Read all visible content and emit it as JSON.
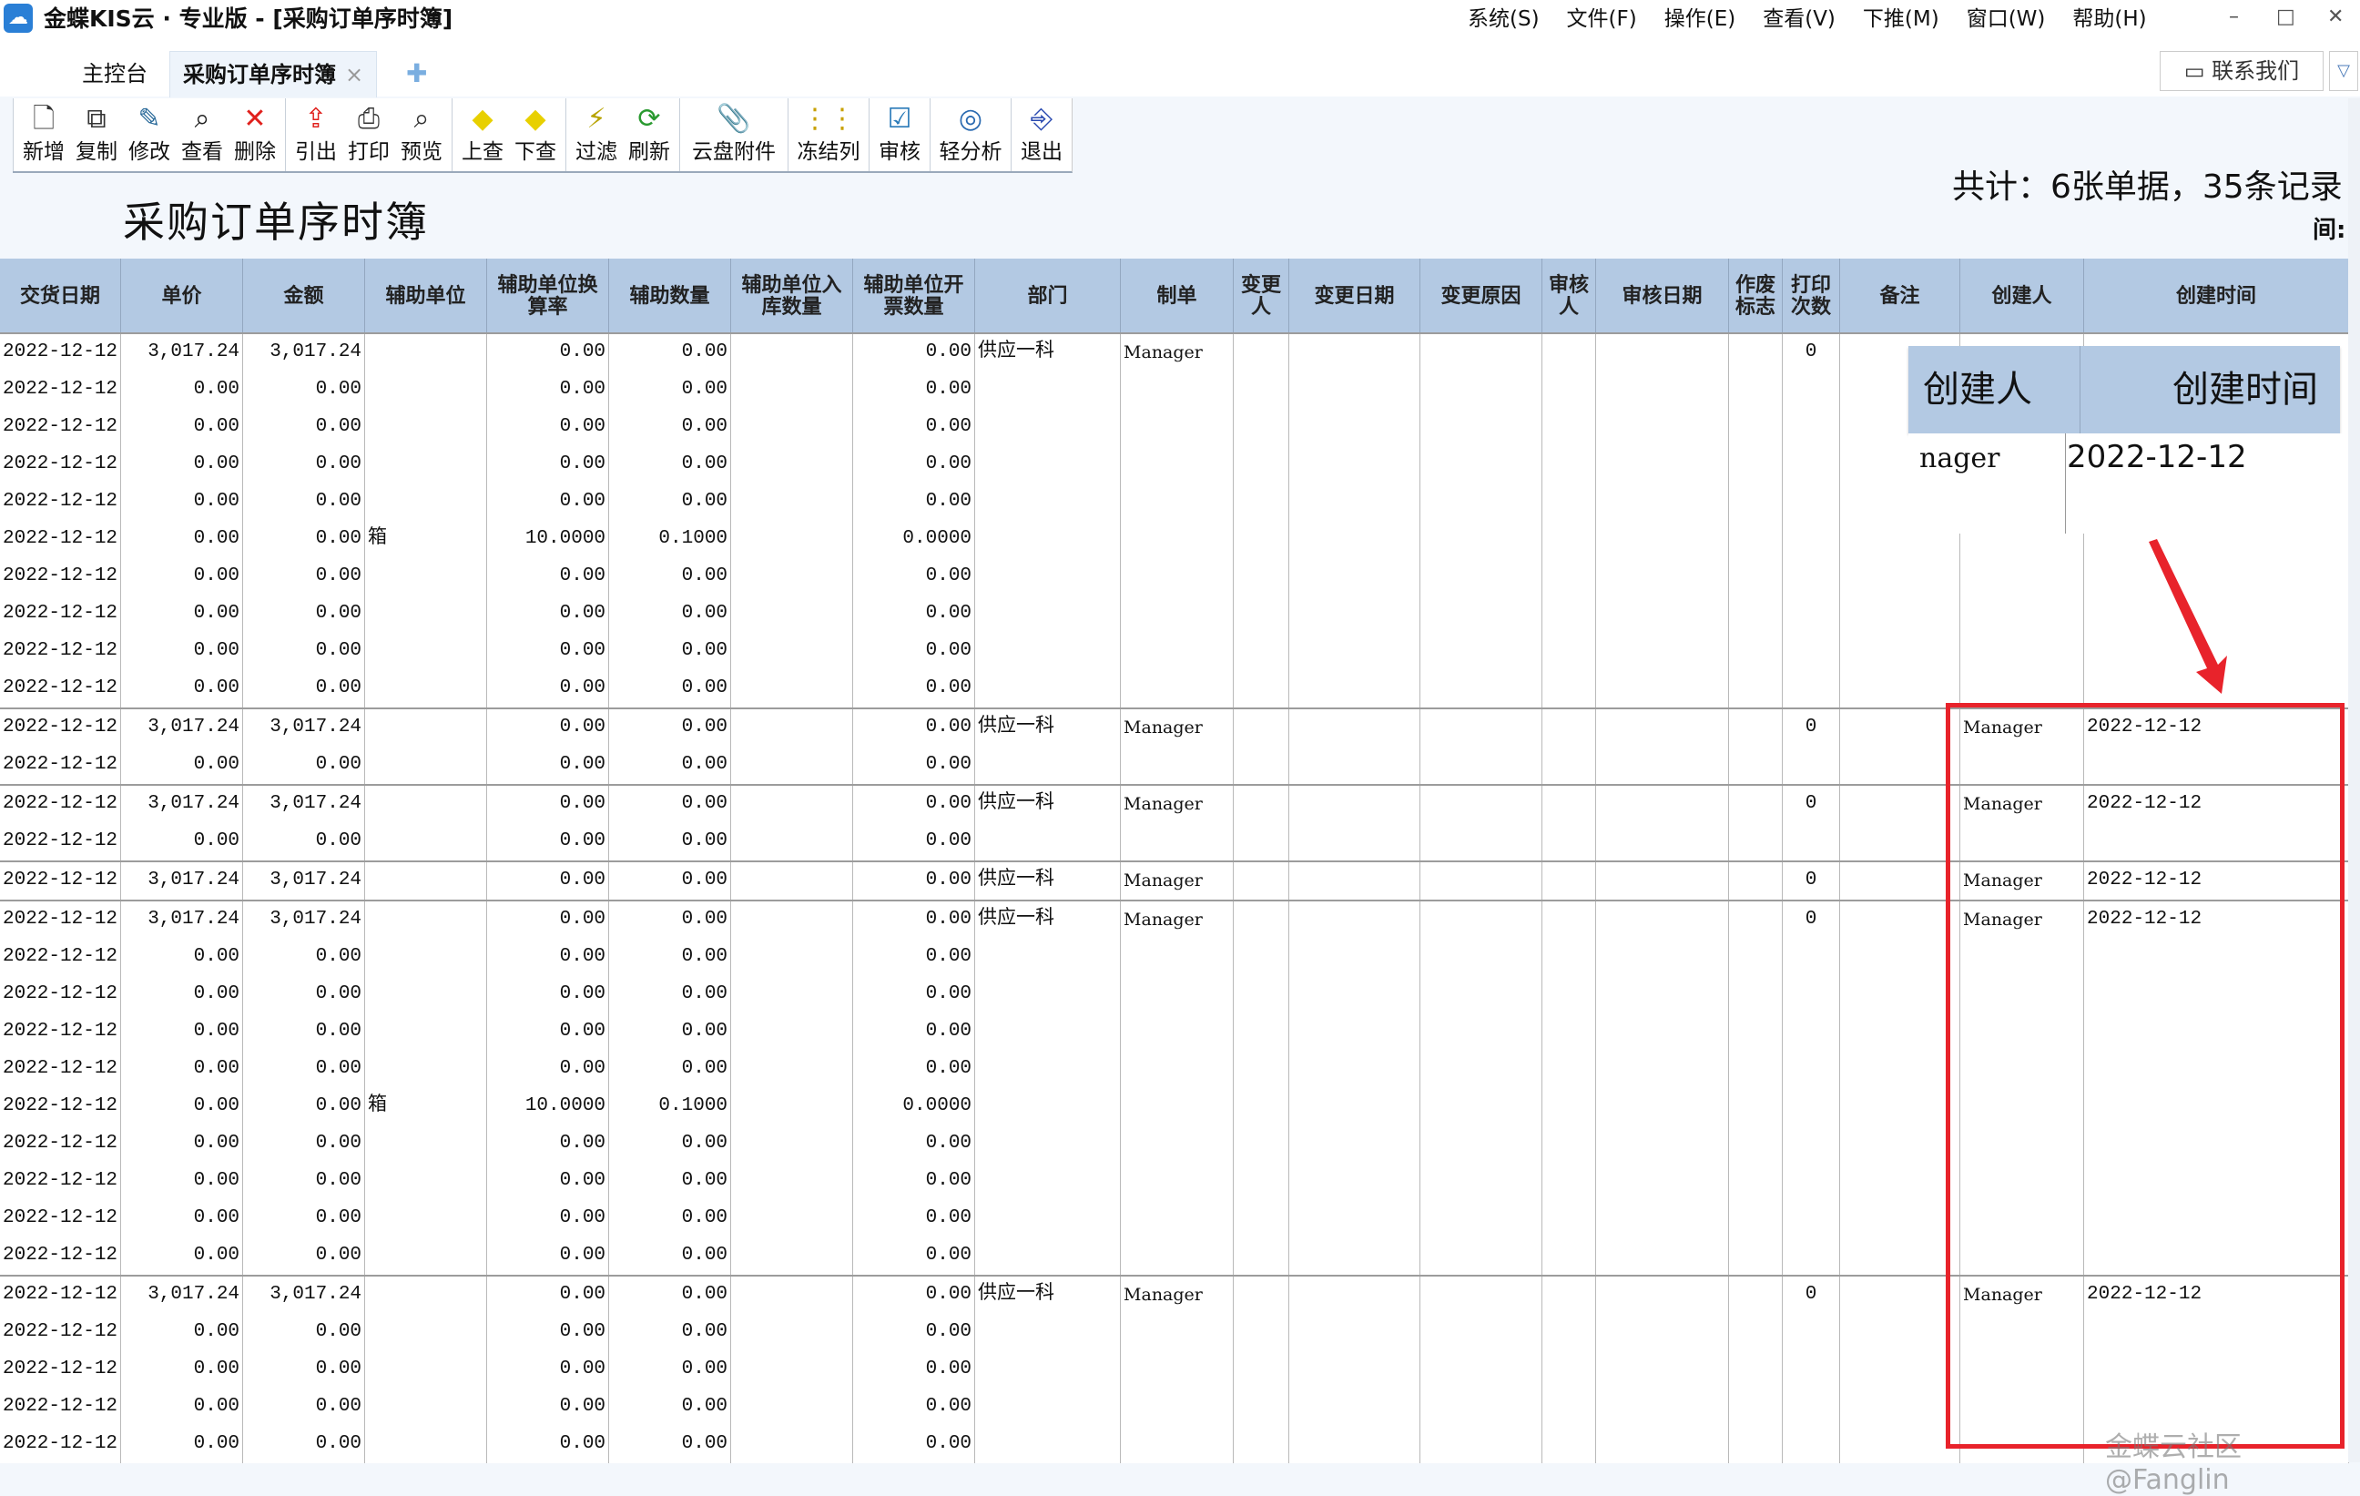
{
  "window": {
    "title": "金蝶KIS云 · 专业版 - [采购订单序时簿]",
    "menu": [
      "系统(S)",
      "文件(F)",
      "操作(E)",
      "查看(V)",
      "下推(M)",
      "窗口(W)",
      "帮助(H)"
    ],
    "controls": {
      "minimize": "–",
      "maximize": "□",
      "close": "✕"
    }
  },
  "tabs": {
    "home": "主控台",
    "active": "采购订单序时簿",
    "close": "×",
    "add": "✚"
  },
  "contact": {
    "icon": "chat-icon",
    "label": "联系我们"
  },
  "toolbar": {
    "groups": [
      [
        {
          "label": "新增",
          "icon": "🗋",
          "color": "#333"
        },
        {
          "label": "复制",
          "icon": "⧉",
          "color": "#333"
        },
        {
          "label": "修改",
          "icon": "✎",
          "color": "#2a6a9a"
        },
        {
          "label": "查看",
          "icon": "⌕",
          "color": "#222"
        },
        {
          "label": "删除",
          "icon": "✕",
          "color": "#e0201c"
        }
      ],
      [
        {
          "label": "引出",
          "icon": "⇪",
          "color": "#e0201c"
        },
        {
          "label": "打印",
          "icon": "⎙",
          "color": "#333"
        },
        {
          "label": "预览",
          "icon": "⌕",
          "color": "#333"
        }
      ],
      [
        {
          "label": "上查",
          "icon": "◆",
          "color": "#e8d000"
        },
        {
          "label": "下查",
          "icon": "◆",
          "color": "#e8d000"
        }
      ],
      [
        {
          "label": "过滤",
          "icon": "⚡",
          "color": "#b8a400"
        },
        {
          "label": "刷新",
          "icon": "⟳",
          "color": "#2a9a30"
        }
      ],
      [
        {
          "label": "云盘附件",
          "icon": "📎",
          "color": "#c8a000",
          "size": "wide"
        }
      ],
      [
        {
          "label": "冻结列",
          "icon": "⋮⋮",
          "color": "#c8a000",
          "size": "mid"
        }
      ],
      [
        {
          "label": "审核",
          "icon": "☑",
          "color": "#2a7ab8"
        }
      ],
      [
        {
          "label": "轻分析",
          "icon": "◎",
          "color": "#2a6ab0",
          "size": "mid"
        }
      ],
      [
        {
          "label": "退出",
          "icon": "⎆",
          "color": "#2a4ab0"
        }
      ]
    ]
  },
  "page_title": "采购订单序时簿",
  "summary": "共计：6张单据，35条记录",
  "partial_label": "间:",
  "table": {
    "columns": [
      "交货日期",
      "单价",
      "金额",
      "辅助单位",
      "辅助单位换算率",
      "辅助数量",
      "辅助单位入库数量",
      "辅助单位开票数量",
      "部门",
      "制单",
      "变更人",
      "变更日期",
      "变更原因",
      "审核人",
      "审核日期",
      "作废标志",
      "打印次数",
      "备注",
      "创建人",
      "创建时间"
    ],
    "rows": [
      {
        "first": true,
        "cells": [
          "2022-12-12",
          "3,017.24",
          "3,017.24",
          "",
          "0.00",
          "0.00",
          "",
          "0.00",
          "供应一科",
          "Manager",
          "",
          "",
          "",
          "",
          "",
          "",
          "0",
          "",
          "",
          ""
        ]
      },
      {
        "cells": [
          "2022-12-12",
          "0.00",
          "0.00",
          "",
          "0.00",
          "0.00",
          "",
          "0.00",
          "",
          "",
          "",
          "",
          "",
          "",
          "",
          "",
          "",
          "",
          "",
          ""
        ]
      },
      {
        "cells": [
          "2022-12-12",
          "0.00",
          "0.00",
          "",
          "0.00",
          "0.00",
          "",
          "0.00",
          "",
          "",
          "",
          "",
          "",
          "",
          "",
          "",
          "",
          "",
          "",
          ""
        ]
      },
      {
        "cells": [
          "2022-12-12",
          "0.00",
          "0.00",
          "",
          "0.00",
          "0.00",
          "",
          "0.00",
          "",
          "",
          "",
          "",
          "",
          "",
          "",
          "",
          "",
          "",
          "",
          ""
        ]
      },
      {
        "cells": [
          "2022-12-12",
          "0.00",
          "0.00",
          "",
          "0.00",
          "0.00",
          "",
          "0.00",
          "",
          "",
          "",
          "",
          "",
          "",
          "",
          "",
          "",
          "",
          "",
          ""
        ]
      },
      {
        "cells": [
          "2022-12-12",
          "0.00",
          "0.00",
          "箱",
          "10.0000",
          "0.1000",
          "",
          "0.0000",
          "",
          "",
          "",
          "",
          "",
          "",
          "",
          "",
          "",
          "",
          "",
          ""
        ]
      },
      {
        "cells": [
          "2022-12-12",
          "0.00",
          "0.00",
          "",
          "0.00",
          "0.00",
          "",
          "0.00",
          "",
          "",
          "",
          "",
          "",
          "",
          "",
          "",
          "",
          "",
          "",
          ""
        ]
      },
      {
        "cells": [
          "2022-12-12",
          "0.00",
          "0.00",
          "",
          "0.00",
          "0.00",
          "",
          "0.00",
          "",
          "",
          "",
          "",
          "",
          "",
          "",
          "",
          "",
          "",
          "",
          ""
        ]
      },
      {
        "cells": [
          "2022-12-12",
          "0.00",
          "0.00",
          "",
          "0.00",
          "0.00",
          "",
          "0.00",
          "",
          "",
          "",
          "",
          "",
          "",
          "",
          "",
          "",
          "",
          "",
          ""
        ]
      },
      {
        "cells": [
          "2022-12-12",
          "0.00",
          "0.00",
          "",
          "0.00",
          "0.00",
          "",
          "0.00",
          "",
          "",
          "",
          "",
          "",
          "",
          "",
          "",
          "",
          "",
          "",
          ""
        ]
      },
      {
        "first": true,
        "cells": [
          "2022-12-12",
          "3,017.24",
          "3,017.24",
          "",
          "0.00",
          "0.00",
          "",
          "0.00",
          "供应一科",
          "Manager",
          "",
          "",
          "",
          "",
          "",
          "",
          "0",
          "",
          "Manager",
          "2022-12-12"
        ]
      },
      {
        "cells": [
          "2022-12-12",
          "0.00",
          "0.00",
          "",
          "0.00",
          "0.00",
          "",
          "0.00",
          "",
          "",
          "",
          "",
          "",
          "",
          "",
          "",
          "",
          "",
          "",
          ""
        ]
      },
      {
        "first": true,
        "cells": [
          "2022-12-12",
          "3,017.24",
          "3,017.24",
          "",
          "0.00",
          "0.00",
          "",
          "0.00",
          "供应一科",
          "Manager",
          "",
          "",
          "",
          "",
          "",
          "",
          "0",
          "",
          "Manager",
          "2022-12-12"
        ]
      },
      {
        "cells": [
          "2022-12-12",
          "0.00",
          "0.00",
          "",
          "0.00",
          "0.00",
          "",
          "0.00",
          "",
          "",
          "",
          "",
          "",
          "",
          "",
          "",
          "",
          "",
          "",
          ""
        ]
      },
      {
        "first": true,
        "cells": [
          "2022-12-12",
          "3,017.24",
          "3,017.24",
          "",
          "0.00",
          "0.00",
          "",
          "0.00",
          "供应一科",
          "Manager",
          "",
          "",
          "",
          "",
          "",
          "",
          "0",
          "",
          "Manager",
          "2022-12-12"
        ]
      },
      {
        "first": true,
        "cells": [
          "2022-12-12",
          "3,017.24",
          "3,017.24",
          "",
          "0.00",
          "0.00",
          "",
          "0.00",
          "供应一科",
          "Manager",
          "",
          "",
          "",
          "",
          "",
          "",
          "0",
          "",
          "Manager",
          "2022-12-12"
        ]
      },
      {
        "cells": [
          "2022-12-12",
          "0.00",
          "0.00",
          "",
          "0.00",
          "0.00",
          "",
          "0.00",
          "",
          "",
          "",
          "",
          "",
          "",
          "",
          "",
          "",
          "",
          "",
          ""
        ]
      },
      {
        "cells": [
          "2022-12-12",
          "0.00",
          "0.00",
          "",
          "0.00",
          "0.00",
          "",
          "0.00",
          "",
          "",
          "",
          "",
          "",
          "",
          "",
          "",
          "",
          "",
          "",
          ""
        ]
      },
      {
        "cells": [
          "2022-12-12",
          "0.00",
          "0.00",
          "",
          "0.00",
          "0.00",
          "",
          "0.00",
          "",
          "",
          "",
          "",
          "",
          "",
          "",
          "",
          "",
          "",
          "",
          ""
        ]
      },
      {
        "cells": [
          "2022-12-12",
          "0.00",
          "0.00",
          "",
          "0.00",
          "0.00",
          "",
          "0.00",
          "",
          "",
          "",
          "",
          "",
          "",
          "",
          "",
          "",
          "",
          "",
          ""
        ]
      },
      {
        "cells": [
          "2022-12-12",
          "0.00",
          "0.00",
          "箱",
          "10.0000",
          "0.1000",
          "",
          "0.0000",
          "",
          "",
          "",
          "",
          "",
          "",
          "",
          "",
          "",
          "",
          "",
          ""
        ]
      },
      {
        "cells": [
          "2022-12-12",
          "0.00",
          "0.00",
          "",
          "0.00",
          "0.00",
          "",
          "0.00",
          "",
          "",
          "",
          "",
          "",
          "",
          "",
          "",
          "",
          "",
          "",
          ""
        ]
      },
      {
        "cells": [
          "2022-12-12",
          "0.00",
          "0.00",
          "",
          "0.00",
          "0.00",
          "",
          "0.00",
          "",
          "",
          "",
          "",
          "",
          "",
          "",
          "",
          "",
          "",
          "",
          ""
        ]
      },
      {
        "cells": [
          "2022-12-12",
          "0.00",
          "0.00",
          "",
          "0.00",
          "0.00",
          "",
          "0.00",
          "",
          "",
          "",
          "",
          "",
          "",
          "",
          "",
          "",
          "",
          "",
          ""
        ]
      },
      {
        "cells": [
          "2022-12-12",
          "0.00",
          "0.00",
          "",
          "0.00",
          "0.00",
          "",
          "0.00",
          "",
          "",
          "",
          "",
          "",
          "",
          "",
          "",
          "",
          "",
          "",
          ""
        ]
      },
      {
        "first": true,
        "cells": [
          "2022-12-12",
          "3,017.24",
          "3,017.24",
          "",
          "0.00",
          "0.00",
          "",
          "0.00",
          "供应一科",
          "Manager",
          "",
          "",
          "",
          "",
          "",
          "",
          "0",
          "",
          "Manager",
          "2022-12-12"
        ]
      },
      {
        "cells": [
          "2022-12-12",
          "0.00",
          "0.00",
          "",
          "0.00",
          "0.00",
          "",
          "0.00",
          "",
          "",
          "",
          "",
          "",
          "",
          "",
          "",
          "",
          "",
          "",
          ""
        ]
      },
      {
        "cells": [
          "2022-12-12",
          "0.00",
          "0.00",
          "",
          "0.00",
          "0.00",
          "",
          "0.00",
          "",
          "",
          "",
          "",
          "",
          "",
          "",
          "",
          "",
          "",
          "",
          ""
        ]
      },
      {
        "cells": [
          "2022-12-12",
          "0.00",
          "0.00",
          "",
          "0.00",
          "0.00",
          "",
          "0.00",
          "",
          "",
          "",
          "",
          "",
          "",
          "",
          "",
          "",
          "",
          "",
          ""
        ]
      },
      {
        "cells": [
          "2022-12-12",
          "0.00",
          "0.00",
          "",
          "0.00",
          "0.00",
          "",
          "0.00",
          "",
          "",
          "",
          "",
          "",
          "",
          "",
          "",
          "",
          "",
          "",
          ""
        ]
      }
    ]
  },
  "zoom_callout": {
    "header_creator": "创建人",
    "header_time": "创建时间",
    "creator": "nager",
    "time": "2022-12-12"
  },
  "annotation": {
    "color": "#e8232b"
  },
  "watermark": "金蝶云社区@Fanglin"
}
